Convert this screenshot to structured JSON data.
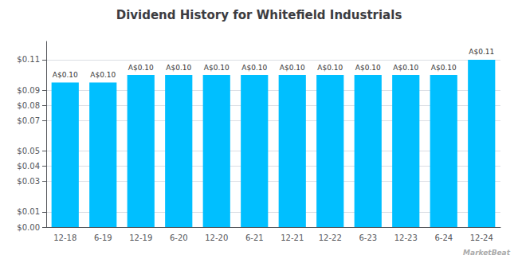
{
  "chart_data": {
    "type": "bar",
    "title": "Dividend History for Whitefield Industrials",
    "categories": [
      "12-18",
      "6-19",
      "12-19",
      "6-20",
      "12-20",
      "6-21",
      "12-21",
      "12-22",
      "6-23",
      "12-23",
      "6-24",
      "12-24"
    ],
    "values": [
      0.095,
      0.095,
      0.1,
      0.1,
      0.1,
      0.1,
      0.1,
      0.1,
      0.1,
      0.1,
      0.1,
      0.11
    ],
    "value_labels": [
      "A$0.10",
      "A$0.10",
      "A$0.10",
      "A$0.10",
      "A$0.10",
      "A$0.10",
      "A$0.10",
      "A$0.10",
      "A$0.10",
      "A$0.10",
      "A$0.10",
      "A$0.11"
    ],
    "data_labels": true,
    "color": "#00BFFF",
    "ylim": [
      0,
      0.122
    ],
    "yticks": [
      {
        "value": 0.0,
        "label": "$0.00"
      },
      {
        "value": 0.01,
        "label": "$0.01"
      },
      {
        "value": 0.03,
        "label": "$0.03"
      },
      {
        "value": 0.04,
        "label": "$0.04"
      },
      {
        "value": 0.05,
        "label": "$0.05"
      },
      {
        "value": 0.07,
        "label": "$0.07"
      },
      {
        "value": 0.08,
        "label": "$0.08"
      },
      {
        "value": 0.09,
        "label": "$0.09"
      },
      {
        "value": 0.11,
        "label": "$0.11"
      }
    ],
    "grid": true,
    "annotations": [
      "MarketBeat"
    ]
  }
}
